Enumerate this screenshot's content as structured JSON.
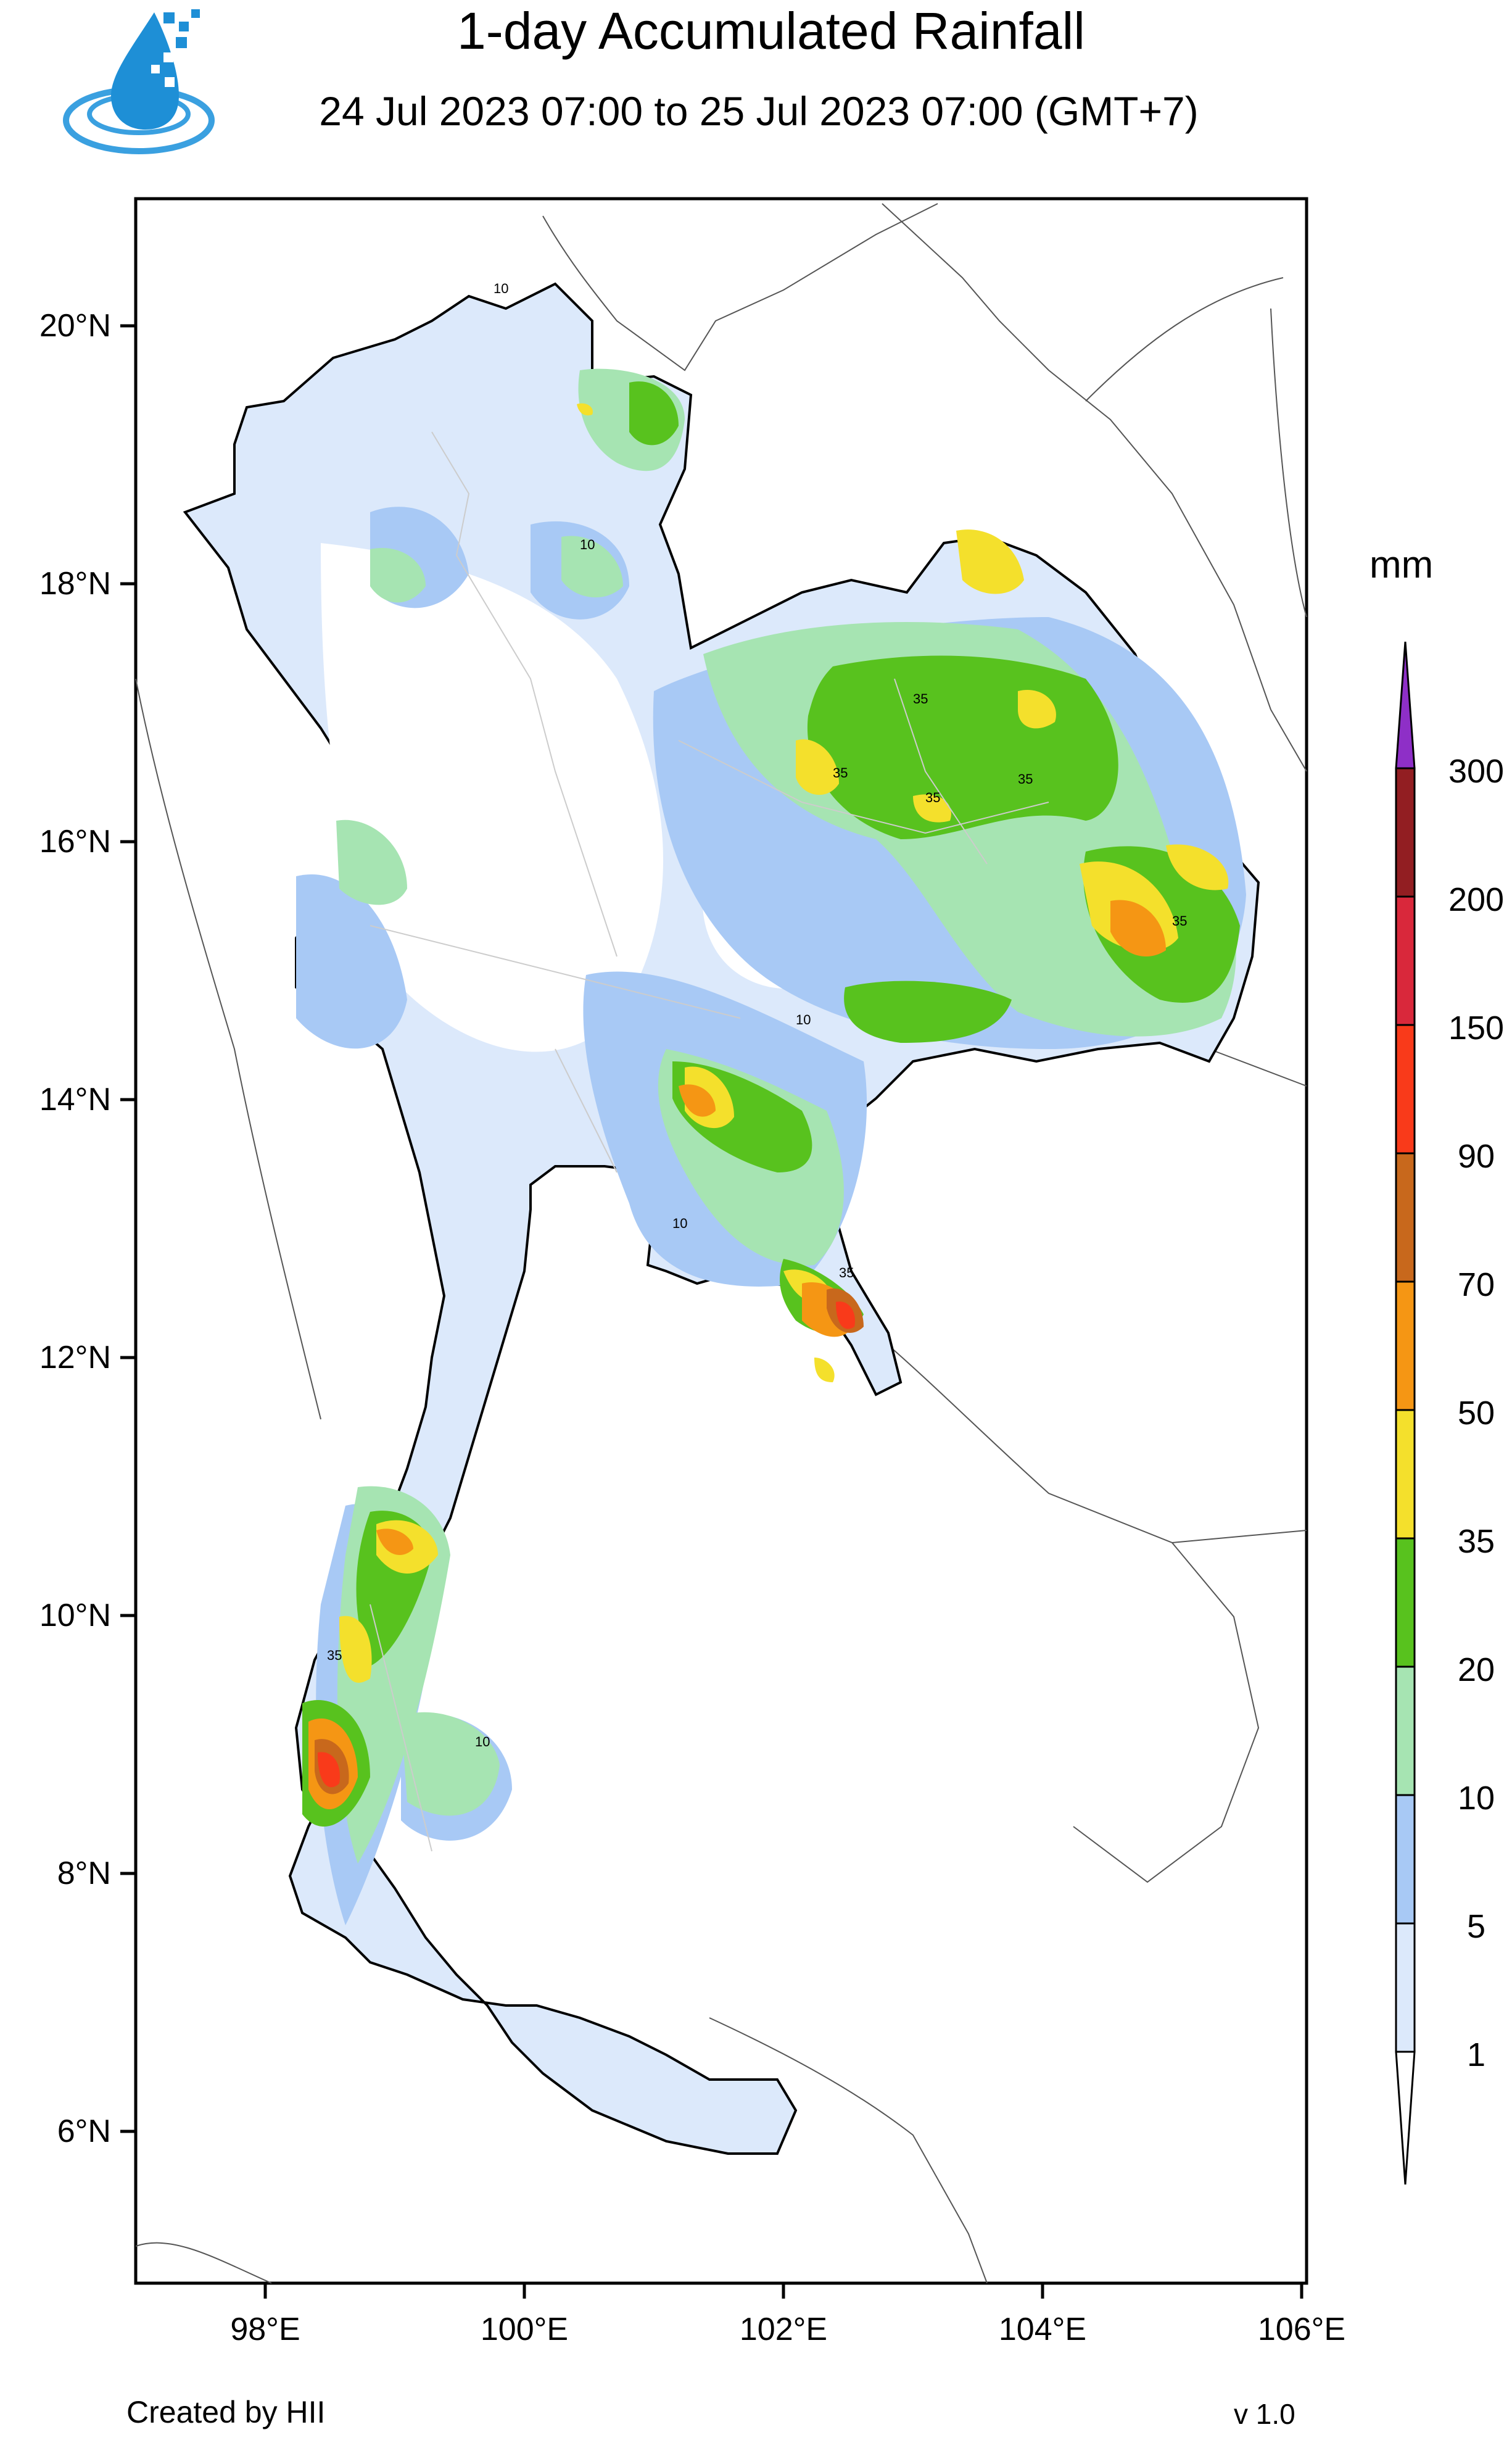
{
  "header": {
    "title": "1-day Accumulated Rainfall",
    "subtitle": "24 Jul 2023 07:00 to 25 Jul 2023 07:00 (GMT+7)"
  },
  "map": {
    "lat_ticks": [
      "20°N",
      "18°N",
      "16°N",
      "14°N",
      "12°N",
      "10°N",
      "8°N",
      "6°N"
    ],
    "lon_ticks": [
      "98°E",
      "100°E",
      "102°E",
      "104°E",
      "106°E"
    ],
    "lon_range": [
      97,
      106
    ],
    "lat_range": [
      5,
      21
    ]
  },
  "legend": {
    "unit": "mm",
    "levels": [
      "1",
      "5",
      "10",
      "20",
      "35",
      "50",
      "70",
      "90",
      "150",
      "200",
      "300"
    ],
    "colors": [
      "#dce9fb",
      "#a8c9f5",
      "#a6e4b2",
      "#58c21e",
      "#f4e02c",
      "#f59614",
      "#c8681c",
      "#f93a1a",
      "#d9283b",
      "#921e22",
      "#8e2fc7"
    ]
  },
  "footer": {
    "credit": "Created by HII",
    "version": "v 1.0"
  }
}
